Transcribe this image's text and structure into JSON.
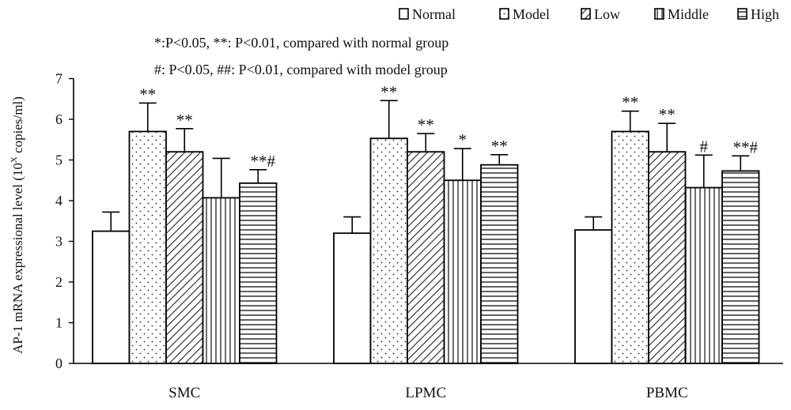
{
  "chart_data": {
    "type": "bar",
    "categories": [
      "SMC",
      "LPMC",
      "PBMC"
    ],
    "series": [
      {
        "name": "Normal",
        "pattern": "white",
        "values": [
          3.25,
          3.2,
          3.28
        ],
        "errors": [
          0.47,
          0.4,
          0.32
        ],
        "marks": [
          "",
          "",
          ""
        ]
      },
      {
        "name": "Model",
        "pattern": "dots",
        "values": [
          5.7,
          5.53,
          5.7
        ],
        "errors": [
          0.7,
          0.93,
          0.5
        ],
        "marks": [
          "**",
          "**",
          "**"
        ]
      },
      {
        "name": "Low",
        "pattern": "diagonal",
        "values": [
          5.2,
          5.2,
          5.2
        ],
        "errors": [
          0.57,
          0.45,
          0.7
        ],
        "marks": [
          "**",
          "**",
          "**"
        ]
      },
      {
        "name": "Middle",
        "pattern": "vertical",
        "values": [
          4.07,
          4.5,
          4.32
        ],
        "errors": [
          0.97,
          0.78,
          0.8
        ],
        "marks": [
          "",
          "*",
          "#"
        ]
      },
      {
        "name": "High",
        "pattern": "horizontal",
        "values": [
          4.43,
          4.88,
          4.73
        ],
        "errors": [
          0.33,
          0.25,
          0.37
        ],
        "marks": [
          "**#",
          "**",
          "**#"
        ]
      }
    ],
    "ylabel": "AP-1 mRNA expressional level (10",
    "ylabel_sup": "X",
    "ylabel_tail": " copies/ml)",
    "ylim": [
      0,
      7
    ],
    "yticks": [
      "0",
      "1",
      "2",
      "3",
      "4",
      "5",
      "6",
      "7"
    ],
    "annotations": [
      "*:P<0.05, **: P<0.01, compared with normal group",
      "#: P<0.05, ##: P<0.01, compared with model group"
    ],
    "legend_position": "top-right",
    "grid": false
  }
}
